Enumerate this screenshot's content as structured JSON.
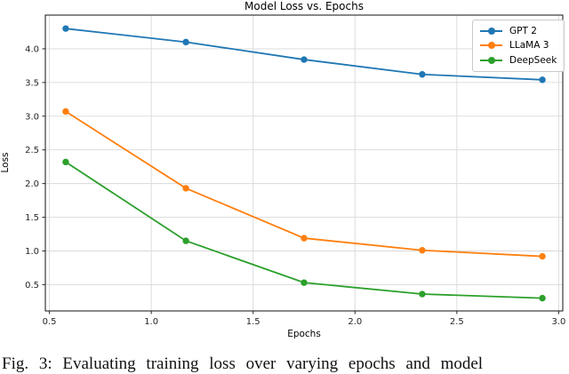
{
  "chart_data": {
    "type": "line",
    "title": "Model Loss vs. Epochs",
    "xlabel": "Epochs",
    "ylabel": "Loss",
    "x": [
      0.58,
      1.17,
      1.75,
      2.33,
      2.92
    ],
    "series": [
      {
        "name": "GPT 2",
        "color": "#1f77b4",
        "values": [
          4.3,
          4.1,
          3.84,
          3.62,
          3.54
        ]
      },
      {
        "name": "LLaMA 3",
        "color": "#ff7f0e",
        "values": [
          3.07,
          1.93,
          1.19,
          1.01,
          0.92
        ]
      },
      {
        "name": "DeepSeek",
        "color": "#2ca02c",
        "values": [
          2.32,
          1.15,
          0.53,
          0.36,
          0.3
        ]
      }
    ],
    "x_ticks": [
      "0.5",
      "1.0",
      "1.5",
      "2.0",
      "2.5",
      "3.0"
    ],
    "y_ticks": [
      "0.5",
      "1.0",
      "1.5",
      "2.0",
      "2.5",
      "3.0",
      "3.5",
      "4.0"
    ],
    "xlim": [
      0.48,
      3.02
    ],
    "ylim": [
      0.11,
      4.5
    ],
    "grid": true,
    "legend_position": "upper right",
    "grid_color": "#d9d9d9",
    "axis_color": "#262626",
    "marker": "circle"
  },
  "caption": {
    "text": "Fig. 3: Evaluating training loss over varying epochs and model"
  }
}
